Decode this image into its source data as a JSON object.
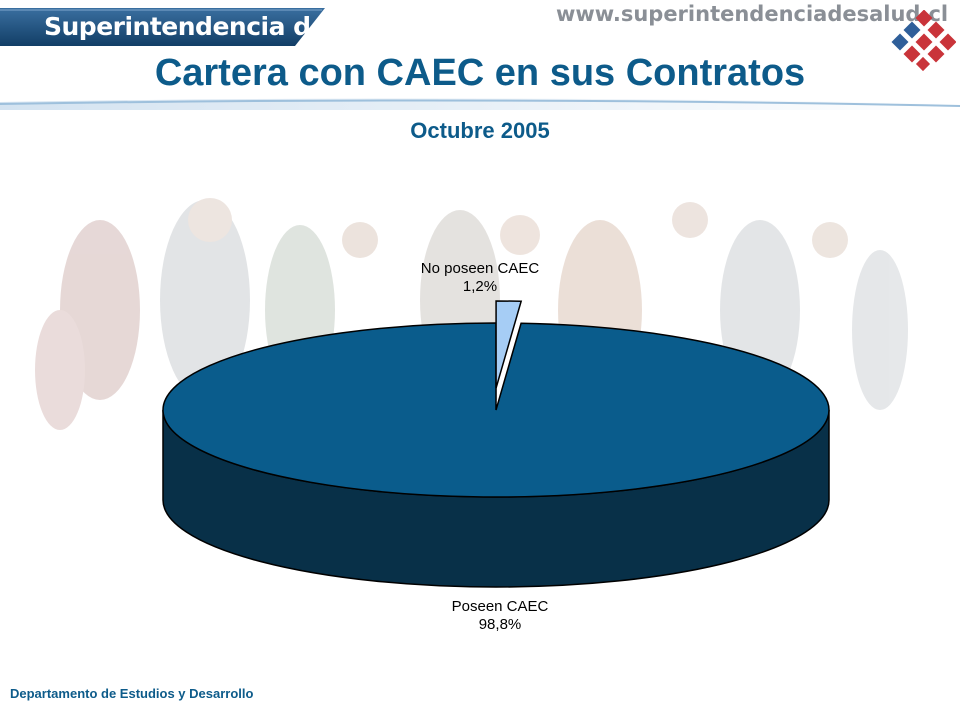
{
  "header": {
    "brand_name": "Superintendencia de Salud",
    "website": "www.superintendenciadesalud.cl",
    "logo_icon": "chile-flag-cube-logo-icon"
  },
  "colors": {
    "accent_blue": "#0d5b8a",
    "slice_major": "#0a5c8c",
    "slice_major_side": "#083048",
    "slice_minor": "#a6cdf5"
  },
  "chart_data": {
    "type": "pie",
    "title": "Cartera con CAEC en sus Contratos",
    "subtitle": "Octubre 2005",
    "style": "3d",
    "slices": [
      {
        "name": "No poseen CAEC",
        "value": 1.2,
        "label": "1,2%"
      },
      {
        "name": "Poseen CAEC",
        "value": 98.8,
        "label": "98,8%"
      }
    ],
    "legend": "none"
  },
  "footer": {
    "department": "Departamento de Estudios y  Desarrollo"
  }
}
